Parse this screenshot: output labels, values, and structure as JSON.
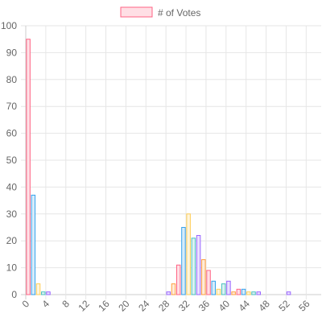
{
  "chart_data": {
    "type": "bar",
    "legend": {
      "label": "# of Votes",
      "position": "top",
      "swatch_fill": "#ffdfe5",
      "swatch_stroke": "#ff6384"
    },
    "x_tick_labels": [
      "0",
      "4",
      "8",
      "12",
      "16",
      "20",
      "24",
      "28",
      "32",
      "36",
      "40",
      "44",
      "48",
      "52",
      "56"
    ],
    "y_tick_labels": [
      "0",
      "10",
      "20",
      "30",
      "40",
      "50",
      "60",
      "70",
      "80",
      "90",
      "100"
    ],
    "ylim": [
      0,
      100
    ],
    "grid": true,
    "x": [
      0,
      1,
      2,
      3,
      4,
      5,
      6,
      7,
      8,
      9,
      10,
      11,
      12,
      13,
      14,
      15,
      16,
      17,
      18,
      19,
      20,
      21,
      22,
      23,
      24,
      25,
      26,
      27,
      28,
      29,
      30,
      31,
      32,
      33,
      34,
      35,
      36,
      37,
      38,
      39,
      40,
      41,
      42,
      43,
      44,
      45,
      46,
      47,
      48,
      49,
      50,
      51,
      52,
      53,
      54,
      55,
      56,
      57,
      58
    ],
    "values": [
      95,
      37,
      4,
      1,
      1,
      0,
      0,
      0,
      0,
      0,
      0,
      0,
      0,
      0,
      0,
      0,
      0,
      0,
      0,
      0,
      0,
      0,
      0,
      0,
      0,
      0,
      0,
      0,
      1,
      4,
      11,
      25,
      30,
      21,
      22,
      13,
      9,
      5,
      2,
      4,
      5,
      1,
      2,
      2,
      1,
      1,
      1,
      0,
      0,
      0,
      0,
      0,
      1,
      0,
      0,
      0,
      0,
      0,
      0
    ],
    "palette": [
      {
        "stroke": "#ff6384",
        "fill": "#ffe0e6"
      },
      {
        "stroke": "#36a2eb",
        "fill": "#d7ecfb"
      },
      {
        "stroke": "#ffcd56",
        "fill": "#fff5dd"
      },
      {
        "stroke": "#4bc0c0",
        "fill": "#dbf2f2"
      },
      {
        "stroke": "#9966ff",
        "fill": "#ebe0ff"
      },
      {
        "stroke": "#ff9f40",
        "fill": "#ffecd9"
      }
    ],
    "colors": {
      "grid": "#e6e6e6",
      "axis": "#cccccc",
      "tick_text": "#666666"
    }
  }
}
